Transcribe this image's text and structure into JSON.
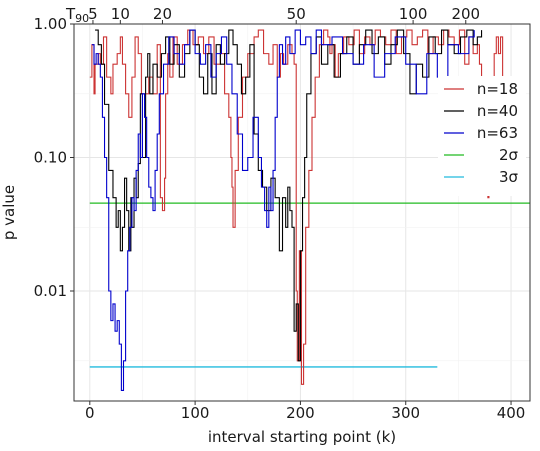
{
  "chart_data": {
    "type": "line",
    "title": "",
    "xlabel": "interval starting point (k)",
    "ylabel": "p value",
    "xlim": [
      -15,
      418
    ],
    "ylim": [
      1.0,
      0.0015
    ],
    "y_scale": "log",
    "y_reversed": true,
    "x_ticks": [
      0,
      100,
      200,
      300,
      400
    ],
    "x_tick_labels": [
      "0",
      "100",
      "200",
      "300",
      "400"
    ],
    "y_ticks": [
      0.01,
      0.1,
      1.0
    ],
    "y_tick_labels": [
      "0.01",
      "0.10",
      "1.00"
    ],
    "top_axis": {
      "label": "T",
      "label_sub": "90",
      "ticks": [
        {
          "label": "5",
          "x": 3
        },
        {
          "label": "10",
          "x": 29
        },
        {
          "label": "20",
          "x": 69
        },
        {
          "label": "50",
          "x": 196
        },
        {
          "label": "100",
          "x": 307
        },
        {
          "label": "200",
          "x": 357
        }
      ]
    },
    "grid": true,
    "legend": {
      "position": "right"
    },
    "series": [
      {
        "name": "n=18",
        "color": "#cc3333",
        "x": [
          0,
          2,
          4,
          5,
          8,
          10,
          13,
          16,
          20,
          22,
          26,
          29,
          31,
          34,
          37,
          40,
          43,
          46,
          49,
          52,
          56,
          60,
          64,
          67,
          69,
          71,
          72,
          74,
          76,
          79,
          83,
          88,
          93,
          98,
          103,
          108,
          113,
          118,
          124,
          128,
          132,
          134,
          135,
          136,
          138,
          141,
          145,
          150,
          156,
          160,
          165,
          170,
          174,
          178,
          181,
          184,
          188,
          192,
          194,
          196,
          197,
          199,
          201,
          203,
          205,
          208,
          211,
          214,
          218,
          222,
          226,
          228,
          230,
          233,
          236,
          241,
          246,
          251,
          256,
          261,
          266,
          271,
          276,
          281,
          286,
          291,
          296,
          301,
          306,
          311,
          316,
          321,
          326,
          331,
          336,
          341,
          346,
          351,
          356,
          360,
          364,
          368,
          370,
          372,
          374,
          376,
          378,
          379,
          381,
          384,
          386,
          388,
          390,
          392,
          394,
          396
        ],
        "y": [
          0.4,
          0.7,
          0.3,
          0.5,
          0.6,
          0.5,
          0.8,
          0.4,
          0.3,
          0.5,
          0.6,
          0.8,
          0.5,
          0.3,
          0.2,
          0.4,
          0.8,
          0.6,
          0.3,
          0.3,
          0.4,
          0.3,
          0.7,
          0.05,
          0.04,
          0.07,
          0.3,
          0.6,
          0.4,
          0.8,
          0.5,
          0.7,
          0.9,
          0.7,
          0.8,
          0.6,
          0.8,
          0.5,
          0.6,
          0.3,
          0.2,
          0.1,
          0.06,
          0.03,
          0.08,
          0.2,
          0.4,
          0.6,
          0.8,
          0.9,
          0.6,
          0.5,
          0.7,
          0.4,
          0.6,
          0.5,
          0.7,
          0.6,
          0.5,
          0.01,
          0.003,
          0.02,
          0.002,
          0.004,
          0.03,
          0.08,
          0.2,
          0.4,
          0.7,
          0.9,
          0.8,
          0.6,
          0.7,
          0.4,
          0.6,
          0.8,
          0.7,
          0.9,
          0.6,
          0.8,
          0.7,
          0.9,
          0.8,
          0.7,
          0.9,
          0.6,
          0.8,
          0.9,
          0.7,
          0.8,
          0.9,
          0.6,
          0.8,
          0.7,
          0.9,
          0.8,
          0.7,
          0.9,
          0.5,
          0.8,
          0.6,
          0.7,
          0.5,
          0.3,
          0.15,
          0.06,
          0.05,
          0.1,
          0.3,
          0.6,
          0.8,
          0.6,
          0.8,
          0.3,
          0.2,
          0.06
        ]
      },
      {
        "name": "n=40",
        "color": "#000000",
        "x": [
          5,
          8,
          11,
          14,
          18,
          22,
          25,
          27,
          29,
          31,
          33,
          35,
          37,
          39,
          40,
          42,
          44,
          46,
          48,
          50,
          53,
          55,
          57,
          60,
          64,
          68,
          72,
          76,
          80,
          85,
          90,
          95,
          100,
          104,
          108,
          112,
          116,
          120,
          124,
          128,
          132,
          136,
          140,
          144,
          148,
          152,
          156,
          160,
          164,
          168,
          172,
          176,
          180,
          183,
          186,
          188,
          190,
          192,
          194,
          196,
          198,
          200,
          202,
          204,
          206,
          210,
          215,
          220,
          226,
          232,
          238,
          244,
          250,
          256,
          262,
          268,
          274,
          280,
          286,
          292,
          298,
          304,
          310,
          316,
          322,
          328,
          334,
          340,
          346,
          352,
          358,
          364,
          368,
          372
        ],
        "y": [
          0.9,
          0.7,
          0.5,
          0.25,
          0.08,
          0.05,
          0.03,
          0.04,
          0.02,
          0.03,
          0.07,
          0.04,
          0.02,
          0.05,
          0.03,
          0.07,
          0.05,
          0.09,
          0.3,
          0.1,
          0.4,
          0.6,
          0.3,
          0.5,
          0.4,
          0.6,
          0.8,
          0.5,
          0.7,
          0.4,
          0.6,
          0.9,
          0.7,
          0.4,
          0.3,
          0.6,
          0.3,
          0.7,
          0.5,
          0.6,
          0.9,
          0.7,
          0.5,
          0.3,
          0.4,
          0.7,
          0.15,
          0.08,
          0.06,
          0.04,
          0.07,
          0.05,
          0.02,
          0.05,
          0.03,
          0.06,
          0.04,
          0.03,
          0.005,
          0.008,
          0.003,
          0.02,
          0.05,
          0.1,
          0.3,
          0.6,
          0.8,
          0.5,
          0.7,
          0.4,
          0.6,
          0.8,
          0.5,
          0.7,
          0.9,
          0.6,
          0.8,
          0.5,
          0.7,
          0.9,
          0.6,
          0.3,
          0.5,
          0.4,
          0.8,
          0.6,
          0.9,
          0.7,
          0.6,
          0.8,
          0.9,
          0.7,
          0.8,
          0.9
        ]
      },
      {
        "name": "n=63",
        "color": "#0000cc",
        "x": [
          2,
          4,
          6,
          8,
          10,
          12,
          14,
          16,
          18,
          20,
          22,
          24,
          26,
          28,
          30,
          32,
          34,
          36,
          38,
          40,
          42,
          44,
          46,
          48,
          50,
          52,
          54,
          56,
          58,
          60,
          62,
          64,
          66,
          70,
          75,
          80,
          85,
          90,
          95,
          100,
          105,
          110,
          115,
          120,
          125,
          130,
          135,
          140,
          145,
          150,
          155,
          160,
          163,
          166,
          168,
          170,
          172,
          174,
          176,
          178,
          180,
          183,
          186,
          190,
          195,
          200,
          205,
          210,
          215,
          220,
          230,
          240,
          250,
          260,
          270,
          280,
          290,
          300,
          310,
          320,
          330,
          340,
          350,
          360,
          365
        ],
        "y": [
          0.7,
          0.5,
          0.6,
          0.5,
          0.4,
          0.2,
          0.1,
          0.05,
          0.01,
          0.006,
          0.008,
          0.005,
          0.006,
          0.004,
          0.0018,
          0.003,
          0.01,
          0.02,
          0.03,
          0.05,
          0.04,
          0.08,
          0.15,
          0.1,
          0.3,
          0.2,
          0.1,
          0.06,
          0.05,
          0.04,
          0.08,
          0.15,
          0.3,
          0.5,
          0.8,
          0.6,
          0.5,
          0.7,
          0.9,
          0.6,
          0.5,
          0.7,
          0.4,
          0.6,
          0.8,
          0.5,
          0.3,
          0.15,
          0.08,
          0.1,
          0.2,
          0.1,
          0.06,
          0.04,
          0.03,
          0.06,
          0.04,
          0.08,
          0.2,
          0.4,
          0.7,
          0.5,
          0.8,
          0.6,
          0.9,
          0.7,
          0.8,
          0.6,
          0.9,
          0.7,
          0.8,
          0.6,
          0.5,
          0.7,
          0.4,
          0.6,
          0.8,
          0.5,
          0.3,
          0.6,
          0.4,
          0.7,
          0.6,
          0.8,
          0.9
        ]
      }
    ],
    "hlines": [
      {
        "name": "2σ",
        "y": 0.0455,
        "color": "#22bb22",
        "x": [
          0,
          418
        ]
      },
      {
        "name": "3σ",
        "y": 0.0027,
        "color": "#22bbdd",
        "x": [
          0,
          330
        ]
      }
    ]
  }
}
